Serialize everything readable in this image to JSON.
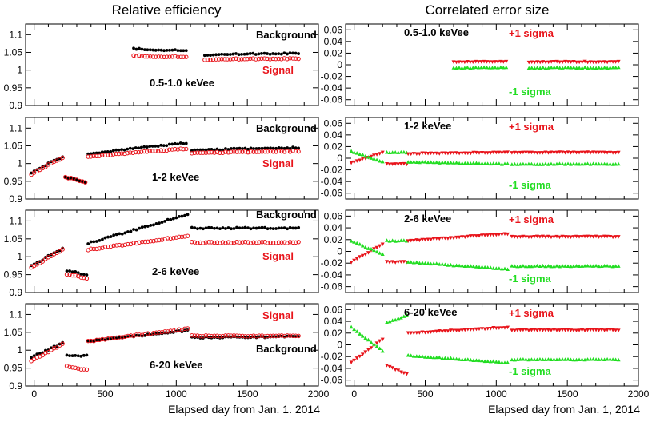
{
  "left_column_title": "Relative efficiency",
  "right_column_title": "Correlated error size",
  "left_xlabel": "Elapsed day from Jan. 1. 2014",
  "right_xlabel": "Elapsed day from Jan. 1, 2014",
  "colors": {
    "signal": "#e8141b",
    "background": "#000000",
    "plus": "#e8141b",
    "minus": "#22dd22"
  },
  "chart_data": [
    {
      "type": "scatter",
      "column": "left",
      "title": "0.5-1.0 keVee",
      "ylim": [
        0.9,
        1.13
      ],
      "yticks": [
        "0.9",
        "0.95",
        "1",
        "1.05",
        "1.1"
      ],
      "xlim": [
        -60,
        2000
      ],
      "legend": {
        "background": "Background",
        "signal": "Signal"
      },
      "segments": [
        {
          "x": [
            700,
            1070
          ],
          "bg": [
            1.06,
            1.055
          ],
          "sig": [
            1.04,
            1.037
          ]
        },
        {
          "x": [
            1200,
            1860
          ],
          "bg": [
            1.043,
            1.048
          ],
          "sig": [
            1.03,
            1.033
          ]
        }
      ]
    },
    {
      "type": "scatter",
      "column": "left",
      "title": "1-2 keVee",
      "ylim": [
        0.9,
        1.13
      ],
      "yticks": [
        "0.9",
        "0.95",
        "1",
        "1.05",
        "1.1"
      ],
      "xlim": [
        -60,
        2000
      ],
      "legend": {
        "background": "Background",
        "signal": "Signal"
      },
      "segments": [
        {
          "x": [
            -20,
            200
          ],
          "bg": [
            0.975,
            1.02
          ],
          "sig": [
            0.97,
            1.017
          ]
        },
        {
          "x": [
            220,
            360
          ],
          "bg": [
            0.962,
            0.948
          ],
          "sig": [
            0.962,
            0.948
          ]
        },
        {
          "x": [
            380,
            1070
          ],
          "bg": [
            1.028,
            1.058
          ],
          "sig": [
            1.02,
            1.042
          ]
        },
        {
          "x": [
            1110,
            1860
          ],
          "bg": [
            1.038,
            1.045
          ],
          "sig": [
            1.03,
            1.035
          ]
        }
      ]
    },
    {
      "type": "scatter",
      "column": "left",
      "title": "2-6 keVee",
      "ylim": [
        0.9,
        1.13
      ],
      "yticks": [
        "0.9",
        "0.95",
        "1",
        "1.05",
        "1.1"
      ],
      "xlim": [
        -60,
        2000
      ],
      "legend": {
        "background": "Background",
        "signal": "Signal"
      },
      "segments": [
        {
          "x": [
            -20,
            200
          ],
          "bg": [
            0.975,
            1.023
          ],
          "sig": [
            0.97,
            1.02
          ]
        },
        {
          "x": [
            230,
            370
          ],
          "bg": [
            0.962,
            0.95
          ],
          "sig": [
            0.952,
            0.94
          ]
        },
        {
          "x": [
            380,
            1080
          ],
          "bg": [
            1.038,
            1.118
          ],
          "sig": [
            1.02,
            1.058
          ]
        },
        {
          "x": [
            1110,
            1860
          ],
          "bg": [
            1.08,
            1.08
          ],
          "sig": [
            1.04,
            1.04
          ]
        }
      ]
    },
    {
      "type": "scatter",
      "column": "left",
      "title": "6-20 keVee",
      "ylim": [
        0.9,
        1.13
      ],
      "yticks": [
        "0.9",
        "0.95",
        "1",
        "1.05",
        "1.1"
      ],
      "xlim": [
        -60,
        2000
      ],
      "legend": {
        "background": "Background",
        "signal": "Signal"
      },
      "xticks": [
        "0",
        "500",
        "1000",
        "1500",
        "2000"
      ],
      "segments": [
        {
          "x": [
            -20,
            200
          ],
          "bg": [
            0.98,
            1.02
          ],
          "sig": [
            0.97,
            1.017
          ]
        },
        {
          "x": [
            230,
            370
          ],
          "bg": [
            0.985,
            0.985
          ],
          "sig": [
            0.955,
            0.945
          ]
        },
        {
          "x": [
            380,
            1080
          ],
          "bg": [
            1.025,
            1.055
          ],
          "sig": [
            1.025,
            1.06
          ]
        },
        {
          "x": [
            1110,
            1860
          ],
          "bg": [
            1.035,
            1.038
          ],
          "sig": [
            1.04,
            1.04
          ]
        }
      ]
    },
    {
      "type": "scatter",
      "column": "right",
      "title": "0.5-1.0 keVee",
      "ylim": [
        -0.07,
        0.07
      ],
      "yticks": [
        "-0.06",
        "-0.04",
        "-0.02",
        "0",
        "0.02",
        "0.04",
        "0.06"
      ],
      "xlim": [
        -60,
        2000
      ],
      "legend": {
        "plus": "+1 sigma",
        "minus": "-1 sigma"
      },
      "segments": [
        {
          "x": [
            700,
            1070
          ],
          "plus": [
            0.005,
            0.005
          ],
          "minus": [
            -0.005,
            -0.005
          ]
        },
        {
          "x": [
            1230,
            1860
          ],
          "plus": [
            0.005,
            0.005
          ],
          "minus": [
            -0.005,
            -0.005
          ]
        }
      ]
    },
    {
      "type": "scatter",
      "column": "right",
      "title": "1-2 keVee",
      "ylim": [
        -0.07,
        0.07
      ],
      "yticks": [
        "-0.06",
        "-0.04",
        "-0.02",
        "0",
        "0.02",
        "0.04",
        "0.06"
      ],
      "xlim": [
        -60,
        2000
      ],
      "legend": {
        "plus": "+1 sigma",
        "minus": "-1 sigma"
      },
      "segments": [
        {
          "x": [
            -20,
            200
          ],
          "plus": [
            -0.008,
            0.01
          ],
          "minus": [
            0.012,
            -0.006
          ]
        },
        {
          "x": [
            230,
            370
          ],
          "plus": [
            -0.01,
            -0.01
          ],
          "minus": [
            0.01,
            0.01
          ]
        },
        {
          "x": [
            380,
            1080
          ],
          "plus": [
            0.008,
            0.01
          ],
          "minus": [
            -0.006,
            -0.01
          ]
        },
        {
          "x": [
            1110,
            1860
          ],
          "plus": [
            0.01,
            0.01
          ],
          "minus": [
            -0.01,
            -0.01
          ]
        }
      ]
    },
    {
      "type": "scatter",
      "column": "right",
      "title": "2-6 keVee",
      "ylim": [
        -0.07,
        0.07
      ],
      "yticks": [
        "-0.06",
        "-0.04",
        "-0.02",
        "0",
        "0.02",
        "0.04",
        "0.06"
      ],
      "xlim": [
        -60,
        2000
      ],
      "legend": {
        "plus": "+1 sigma",
        "minus": "-1 sigma"
      },
      "segments": [
        {
          "x": [
            -20,
            200
          ],
          "plus": [
            -0.018,
            0.012
          ],
          "minus": [
            0.018,
            -0.005
          ]
        },
        {
          "x": [
            230,
            370
          ],
          "plus": [
            -0.018,
            -0.018
          ],
          "minus": [
            0.018,
            0.018
          ]
        },
        {
          "x": [
            380,
            1080
          ],
          "plus": [
            0.018,
            0.03
          ],
          "minus": [
            -0.018,
            -0.03
          ]
        },
        {
          "x": [
            1110,
            1860
          ],
          "plus": [
            0.025,
            0.025
          ],
          "minus": [
            -0.025,
            -0.025
          ]
        }
      ]
    },
    {
      "type": "scatter",
      "column": "right",
      "title": "6-20 keVee",
      "ylim": [
        -0.07,
        0.07
      ],
      "yticks": [
        "-0.06",
        "-0.04",
        "-0.02",
        "0",
        "0.02",
        "0.04",
        "0.06"
      ],
      "xlim": [
        -60,
        2000
      ],
      "legend": {
        "plus": "+1 sigma",
        "minus": "-1 sigma"
      },
      "xticks": [
        "0",
        "500",
        "1000",
        "1500",
        "2000"
      ],
      "segments": [
        {
          "x": [
            -20,
            200
          ],
          "plus": [
            -0.03,
            0.01
          ],
          "minus": [
            0.03,
            -0.01
          ]
        },
        {
          "x": [
            230,
            370
          ],
          "plus": [
            -0.035,
            -0.05
          ],
          "minus": [
            0.038,
            0.05
          ]
        },
        {
          "x": [
            380,
            1080
          ],
          "plus": [
            0.02,
            0.03
          ],
          "minus": [
            -0.018,
            -0.03
          ]
        },
        {
          "x": [
            1110,
            1860
          ],
          "plus": [
            0.025,
            0.025
          ],
          "minus": [
            -0.025,
            -0.025
          ]
        }
      ]
    }
  ]
}
